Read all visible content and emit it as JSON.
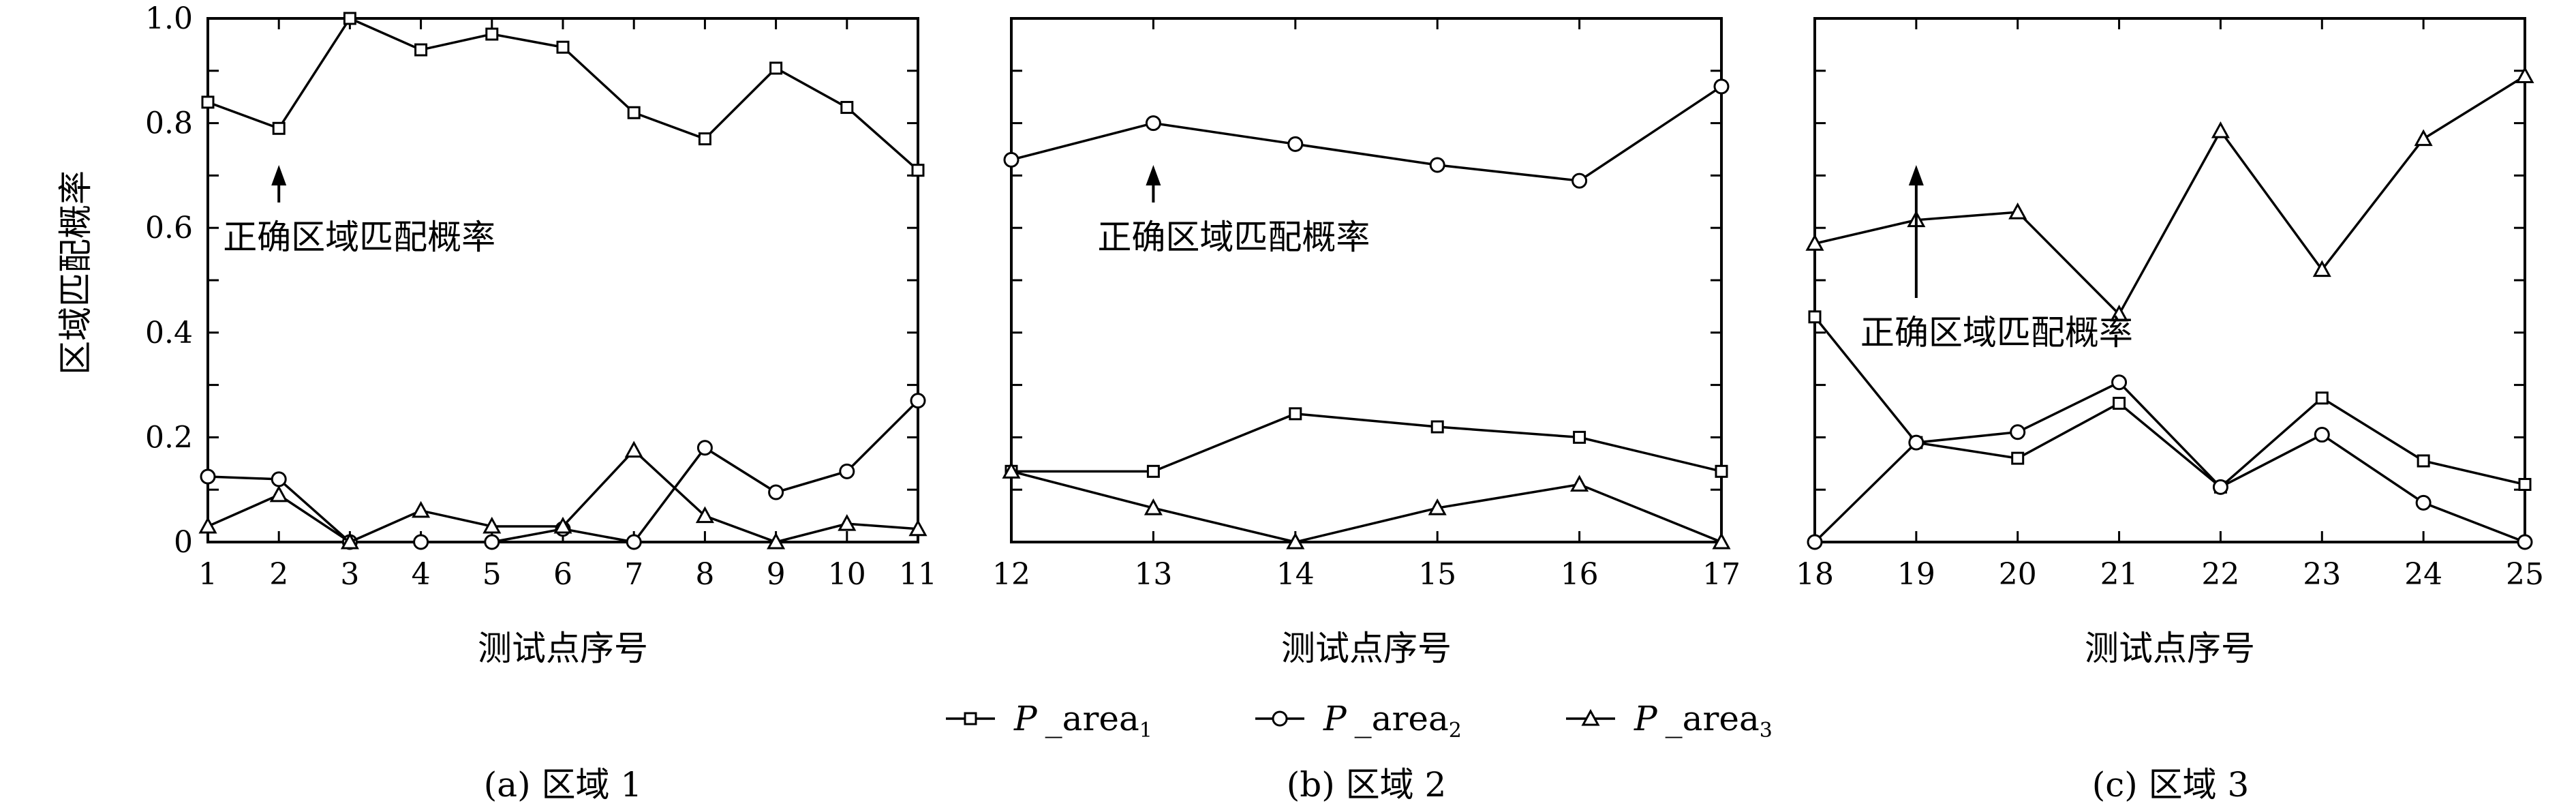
{
  "figure": {
    "ylabel": "区域匹配概率",
    "xlabel": "测试点序号",
    "legend": [
      {
        "base": "P",
        "sep": "_",
        "text": "area",
        "sub": "1",
        "marker": "square"
      },
      {
        "base": "P",
        "sep": "_",
        "text": "area",
        "sub": "2",
        "marker": "circle"
      },
      {
        "base": "P",
        "sep": "_",
        "text": "area",
        "sub": "3",
        "marker": "triangle"
      }
    ],
    "annotation": "正确区域匹配概率"
  },
  "chart_data": [
    {
      "type": "line",
      "caption": "(a) 区域 1",
      "xlabel": "测试点序号",
      "ylabel": "区域匹配概率",
      "ylim": [
        0,
        1
      ],
      "yticks": [
        "0",
        "0.2",
        "0.4",
        "0.6",
        "0.8",
        "1.0"
      ],
      "x": [
        1,
        2,
        3,
        4,
        5,
        6,
        7,
        8,
        9,
        10,
        11
      ],
      "series": [
        {
          "name": "P_area1",
          "marker": "square",
          "values": [
            0.84,
            0.79,
            1.0,
            0.94,
            0.97,
            0.945,
            0.82,
            0.77,
            0.905,
            0.83,
            0.71
          ]
        },
        {
          "name": "P_area2",
          "marker": "circle",
          "values": [
            0.125,
            0.12,
            0.0,
            0.0,
            0.0,
            0.025,
            0.0,
            0.18,
            0.095,
            0.135,
            0.27
          ]
        },
        {
          "name": "P_area3",
          "marker": "triangle",
          "values": [
            0.03,
            0.09,
            0.0,
            0.06,
            0.03,
            0.03,
            0.175,
            0.05,
            0.0,
            0.035,
            0.025
          ]
        }
      ],
      "annotation": {
        "text": "正确区域匹配概率",
        "x": 2
      }
    },
    {
      "type": "line",
      "caption": "(b) 区域 2",
      "xlabel": "测试点序号",
      "ylim": [
        0,
        1
      ],
      "x": [
        12,
        13,
        14,
        15,
        16,
        17
      ],
      "series": [
        {
          "name": "P_area1",
          "marker": "square",
          "values": [
            0.135,
            0.135,
            0.245,
            0.22,
            0.2,
            0.135
          ]
        },
        {
          "name": "P_area2",
          "marker": "circle",
          "values": [
            0.73,
            0.8,
            0.76,
            0.72,
            0.69,
            0.87
          ]
        },
        {
          "name": "P_area3",
          "marker": "triangle",
          "values": [
            0.135,
            0.065,
            0.0,
            0.065,
            0.11,
            0.0
          ]
        }
      ],
      "annotation": {
        "text": "正确区域匹配概率",
        "x": 13
      }
    },
    {
      "type": "line",
      "caption": "(c) 区域 3",
      "xlabel": "测试点序号",
      "ylim": [
        0,
        1
      ],
      "x": [
        18,
        19,
        20,
        21,
        22,
        23,
        24,
        25
      ],
      "series": [
        {
          "name": "P_area1",
          "marker": "square",
          "values": [
            0.43,
            0.19,
            0.16,
            0.265,
            0.105,
            0.275,
            0.155,
            0.11
          ]
        },
        {
          "name": "P_area2",
          "marker": "circle",
          "values": [
            0.0,
            0.19,
            0.21,
            0.305,
            0.105,
            0.205,
            0.075,
            0.0
          ]
        },
        {
          "name": "P_area3",
          "marker": "triangle",
          "values": [
            0.57,
            0.615,
            0.63,
            0.435,
            0.785,
            0.52,
            0.77,
            0.89
          ]
        }
      ],
      "annotation": {
        "text": "正确区域匹配概率",
        "x": 19
      }
    }
  ]
}
